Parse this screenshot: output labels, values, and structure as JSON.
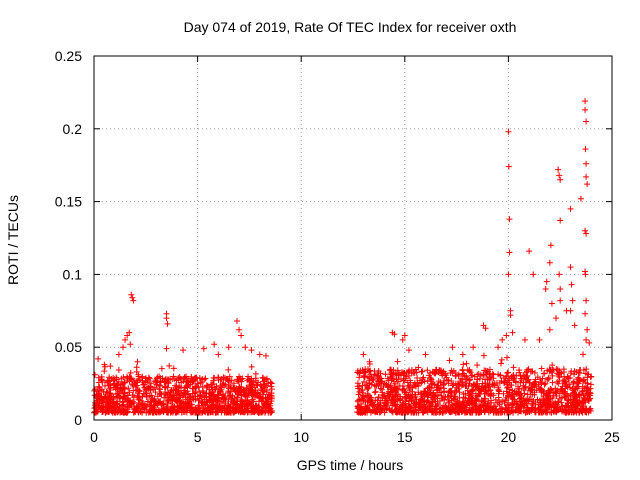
{
  "chart_data": {
    "type": "scatter",
    "title": "Day 074 of 2019, Rate Of TEC Index for receiver oxth",
    "xlabel": "GPS time / hours",
    "ylabel": "ROTI / TECUs",
    "xlim": [
      0,
      25
    ],
    "ylim": [
      0,
      0.25
    ],
    "grid": true,
    "marker": "plus",
    "color": "#ff0000",
    "x_ticks": [
      {
        "value": 0,
        "label": "0"
      },
      {
        "value": 5,
        "label": "5"
      },
      {
        "value": 10,
        "label": "10"
      },
      {
        "value": 15,
        "label": "15"
      },
      {
        "value": 20,
        "label": "20"
      },
      {
        "value": 25,
        "label": "25"
      }
    ],
    "y_ticks": [
      {
        "value": 0,
        "label": "0"
      },
      {
        "value": 0.05,
        "label": "0.05"
      },
      {
        "value": 0.1,
        "label": "0.1"
      },
      {
        "value": 0.15,
        "label": "0.15"
      },
      {
        "value": 0.2,
        "label": "0.2"
      },
      {
        "value": 0.25,
        "label": "0.25"
      }
    ],
    "series": [
      {
        "name": "ROTI",
        "segments": [
          {
            "x_start": 0.0,
            "x_end": 8.6,
            "typical_min": 0.005,
            "typical_max": 0.03
          },
          {
            "x_start": 12.7,
            "x_end": 24.0,
            "typical_min": 0.005,
            "typical_max": 0.035
          }
        ],
        "points": [
          [
            0.2,
            0.042
          ],
          [
            0.5,
            0.038
          ],
          [
            1.2,
            0.045
          ],
          [
            1.4,
            0.05
          ],
          [
            1.5,
            0.055
          ],
          [
            1.6,
            0.058
          ],
          [
            1.7,
            0.06
          ],
          [
            1.75,
            0.052
          ],
          [
            1.8,
            0.086
          ],
          [
            1.85,
            0.084
          ],
          [
            1.9,
            0.082
          ],
          [
            2.1,
            0.04
          ],
          [
            3.5,
            0.073
          ],
          [
            3.5,
            0.07
          ],
          [
            3.55,
            0.066
          ],
          [
            3.5,
            0.049
          ],
          [
            4.3,
            0.048
          ],
          [
            5.3,
            0.049
          ],
          [
            5.8,
            0.052
          ],
          [
            6.0,
            0.045
          ],
          [
            6.5,
            0.05
          ],
          [
            6.9,
            0.068
          ],
          [
            7.0,
            0.062
          ],
          [
            7.1,
            0.058
          ],
          [
            7.3,
            0.05
          ],
          [
            7.6,
            0.048
          ],
          [
            8.0,
            0.045
          ],
          [
            8.3,
            0.044
          ],
          [
            13.0,
            0.045
          ],
          [
            13.3,
            0.04
          ],
          [
            14.4,
            0.06
          ],
          [
            14.5,
            0.059
          ],
          [
            14.9,
            0.055
          ],
          [
            15.0,
            0.058
          ],
          [
            15.2,
            0.048
          ],
          [
            16.0,
            0.045
          ],
          [
            17.3,
            0.05
          ],
          [
            17.8,
            0.045
          ],
          [
            18.3,
            0.05
          ],
          [
            18.8,
            0.065
          ],
          [
            18.9,
            0.063
          ],
          [
            19.5,
            0.05
          ],
          [
            19.7,
            0.055
          ],
          [
            19.9,
            0.058
          ],
          [
            20.0,
            0.198
          ],
          [
            20.02,
            0.174
          ],
          [
            20.05,
            0.138
          ],
          [
            20.05,
            0.115
          ],
          [
            20.0,
            0.1
          ],
          [
            20.1,
            0.075
          ],
          [
            20.1,
            0.072
          ],
          [
            20.2,
            0.06
          ],
          [
            20.8,
            0.055
          ],
          [
            21.0,
            0.116
          ],
          [
            21.2,
            0.1
          ],
          [
            21.5,
            0.055
          ],
          [
            21.8,
            0.09
          ],
          [
            21.85,
            0.095
          ],
          [
            22.0,
            0.108
          ],
          [
            22.05,
            0.12
          ],
          [
            22.1,
            0.08
          ],
          [
            22.0,
            0.062
          ],
          [
            22.3,
            0.07
          ],
          [
            22.4,
            0.172
          ],
          [
            22.45,
            0.168
          ],
          [
            22.5,
            0.165
          ],
          [
            22.5,
            0.137
          ],
          [
            22.45,
            0.1
          ],
          [
            22.5,
            0.09
          ],
          [
            22.5,
            0.082
          ],
          [
            22.8,
            0.075
          ],
          [
            23.0,
            0.145
          ],
          [
            23.0,
            0.105
          ],
          [
            23.05,
            0.093
          ],
          [
            23.1,
            0.082
          ],
          [
            23.0,
            0.075
          ],
          [
            23.2,
            0.065
          ],
          [
            23.5,
            0.152
          ],
          [
            23.7,
            0.219
          ],
          [
            23.7,
            0.213
          ],
          [
            23.75,
            0.205
          ],
          [
            23.72,
            0.186
          ],
          [
            23.75,
            0.176
          ],
          [
            23.75,
            0.167
          ],
          [
            23.8,
            0.162
          ],
          [
            23.7,
            0.13
          ],
          [
            23.75,
            0.128
          ],
          [
            23.7,
            0.102
          ],
          [
            23.72,
            0.1
          ],
          [
            23.75,
            0.082
          ],
          [
            23.7,
            0.073
          ],
          [
            23.8,
            0.062
          ],
          [
            23.75,
            0.055
          ],
          [
            23.9,
            0.053
          ]
        ]
      }
    ]
  }
}
